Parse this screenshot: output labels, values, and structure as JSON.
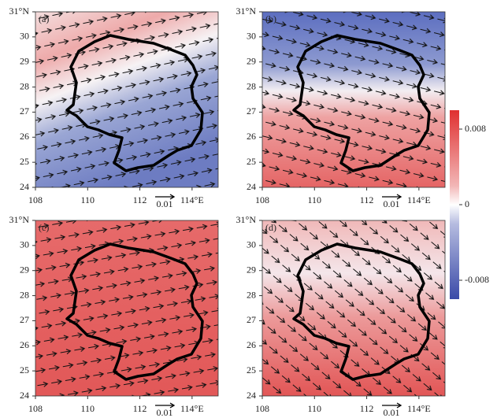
{
  "panels": [
    {
      "label": "(a)"
    },
    {
      "label": "(b)"
    },
    {
      "label": "(c)"
    },
    {
      "label": "(d)"
    }
  ],
  "x_axis": {
    "xlim": [
      108,
      115
    ],
    "xticks": [
      108,
      110,
      112,
      {
        "value": 114,
        "label": "114°E"
      }
    ]
  },
  "y_axis": {
    "ylim": [
      24,
      31
    ],
    "yticks": [
      24,
      25,
      26,
      27,
      28,
      29,
      30,
      {
        "value": 31,
        "label": "31°N"
      }
    ]
  },
  "reference_vector": {
    "label": "0.01"
  },
  "colorbar": {
    "clim": [
      -0.01,
      0.01
    ],
    "ticks": [
      0.008,
      0,
      -0.008
    ]
  }
}
